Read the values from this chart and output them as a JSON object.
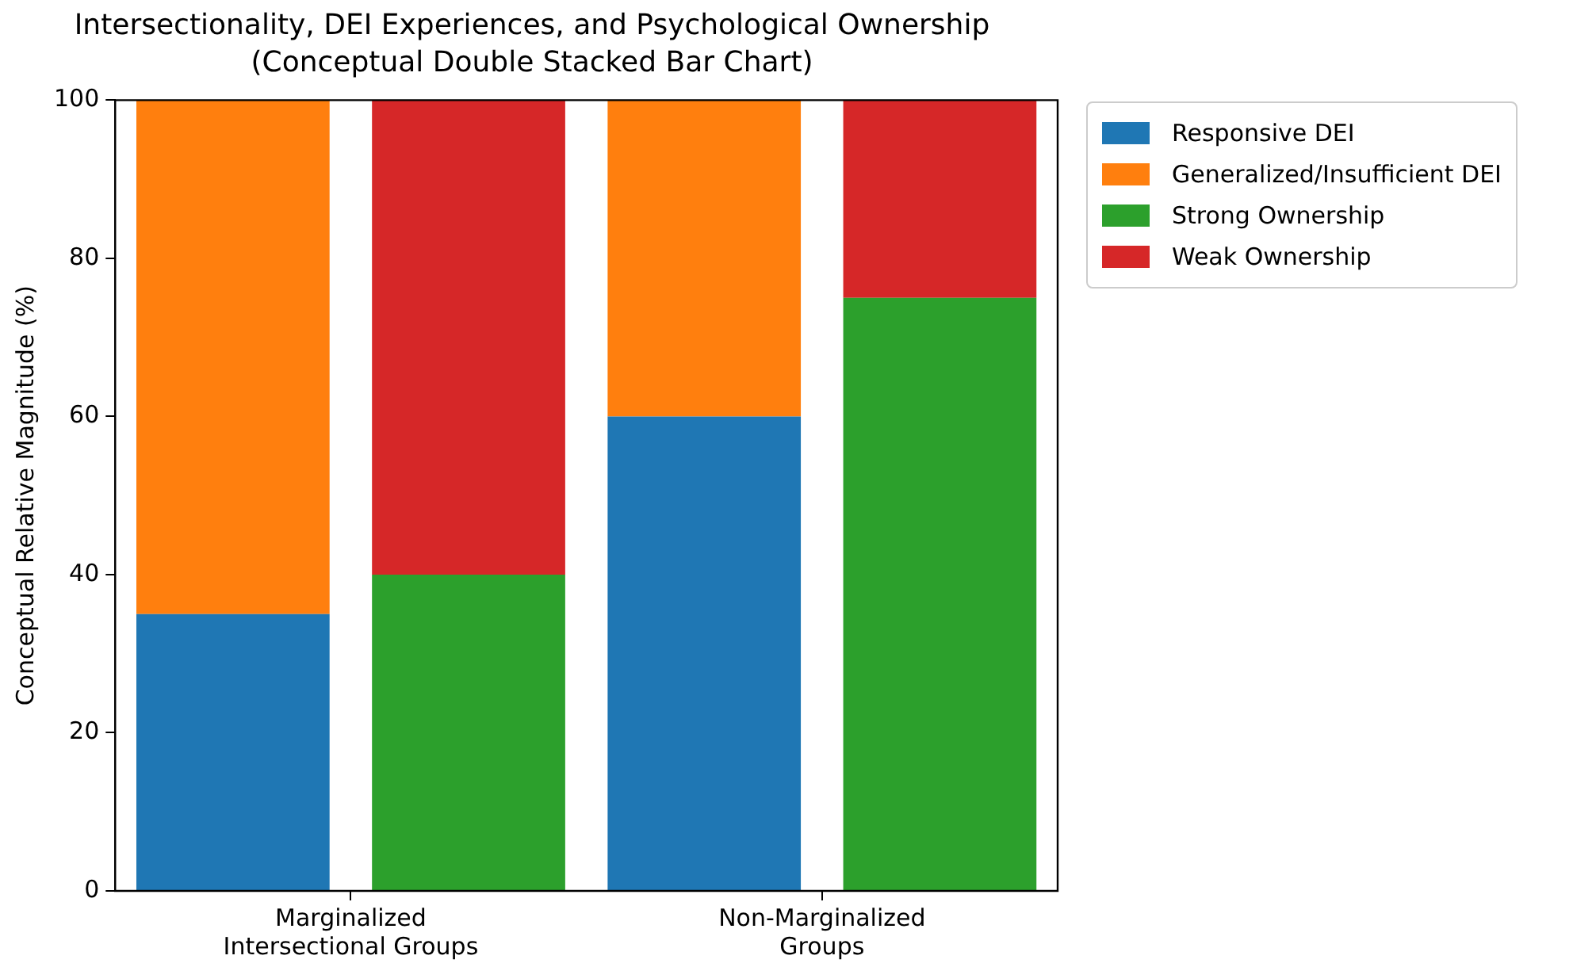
{
  "chart_data": {
    "type": "bar",
    "title": "Intersectionality, DEI Experiences, and Psychological Ownership",
    "subtitle": "(Conceptual Double Stacked Bar Chart)",
    "ylabel": "Conceptual Relative Magnitude (%)",
    "categories": [
      "Marginalized\nIntersectional Groups",
      null,
      "Non-Marginalized\nGroups",
      null
    ],
    "series": [
      {
        "name": "Responsive DEI",
        "color": "#1f77b4",
        "values": [
          35,
          null,
          60,
          null
        ]
      },
      {
        "name": "Generalized/Insufficient DEI",
        "color": "#ff7f0e",
        "values": [
          65,
          null,
          40,
          null
        ]
      },
      {
        "name": "Strong Ownership",
        "color": "#2ca02c",
        "values": [
          null,
          40,
          null,
          75
        ]
      },
      {
        "name": "Weak Ownership",
        "color": "#d62728",
        "values": [
          null,
          60,
          null,
          25
        ]
      }
    ],
    "stacked": true,
    "ylim": [
      0,
      100
    ],
    "yticks": [
      0,
      20,
      40,
      60,
      80,
      100
    ],
    "grid": false,
    "legend": "top right"
  }
}
